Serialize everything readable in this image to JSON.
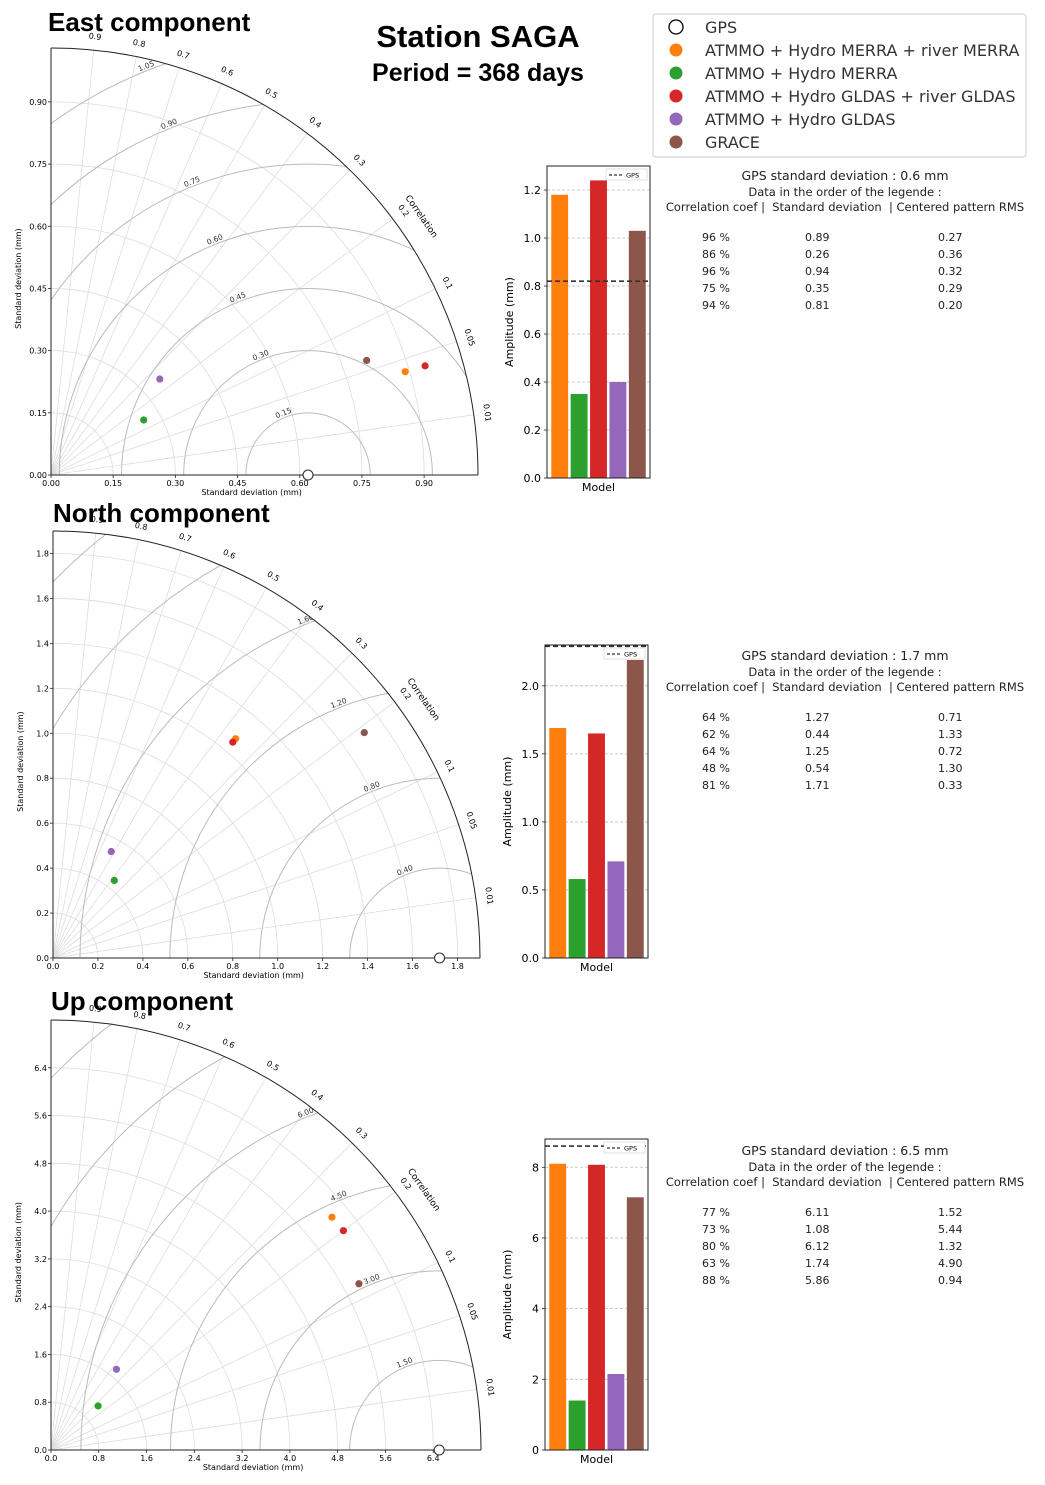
{
  "header": {
    "station": "Station SAGA",
    "period": "Period = 368 days"
  },
  "legend": [
    {
      "label": "GPS",
      "color": "#000000",
      "marker": "circle-open"
    },
    {
      "label": "ATMMO + Hydro MERRA + river MERRA",
      "color": "#ff7f0e"
    },
    {
      "label": "ATMMO + Hydro MERRA",
      "color": "#2ca02c"
    },
    {
      "label": "ATMMO + Hydro GLDAS + river GLDAS",
      "color": "#d62728"
    },
    {
      "label": "ATMMO + Hydro GLDAS",
      "color": "#9467bd"
    },
    {
      "label": "GRACE",
      "color": "#8c564b"
    }
  ],
  "stats_header": {
    "order_text": "Data in the order of the legende :",
    "columns": "Correlation coef |  Standard deviation  | Centered pattern RMS"
  },
  "chart_data": [
    {
      "type": "taylor",
      "title": "East component",
      "xlabel": "Standard deviation (mm)",
      "ylabel": "Standard deviation (mm)",
      "corr_label": "Correlation",
      "max_std": 1.03,
      "std_ticks": [
        "0.00",
        "0.15",
        "0.30",
        "0.45",
        "0.60",
        "0.75",
        "0.90"
      ],
      "corr_ticks": [
        "0.01",
        "0.05",
        "0.1",
        "0.2",
        "0.3",
        "0.4",
        "0.5",
        "0.6",
        "0.7",
        "0.8",
        "0.9"
      ],
      "rms_values": [
        0.15,
        0.3,
        0.45,
        0.6,
        0.75,
        0.9,
        1.05
      ],
      "rms_labels": [
        "0.15",
        "0.30",
        "0.45",
        "0.60",
        "0.75",
        "0.90",
        "1.05"
      ],
      "gps_std": 0.62,
      "points": [
        {
          "corr": 0.96,
          "std": 0.89
        },
        {
          "corr": 0.86,
          "std": 0.26
        },
        {
          "corr": 0.96,
          "std": 0.94
        },
        {
          "corr": 0.75,
          "std": 0.35
        },
        {
          "corr": 0.94,
          "std": 0.81
        }
      ],
      "bar": {
        "type": "bar",
        "xlabel": "Model",
        "ylabel": "Amplitude (mm)",
        "ylim": [
          0,
          1.3
        ],
        "yticks": [
          "0.0",
          "0.2",
          "0.4",
          "0.6",
          "0.8",
          "1.0",
          "1.2"
        ],
        "values": [
          1.18,
          0.35,
          1.24,
          0.4,
          1.03
        ],
        "gps_line": 0.82,
        "gps_label": "GPS"
      },
      "stats": {
        "gps_text": "GPS standard deviation : 0.6 mm",
        "rows": [
          [
            "96 %",
            "0.89",
            "0.27"
          ],
          [
            "86 %",
            "0.26",
            "0.36"
          ],
          [
            "96 %",
            "0.94",
            "0.32"
          ],
          [
            "75 %",
            "0.35",
            "0.29"
          ],
          [
            "94 %",
            "0.81",
            "0.20"
          ]
        ]
      }
    },
    {
      "type": "taylor",
      "title": "North component",
      "xlabel": "Standard deviation (mm)",
      "ylabel": "Standard deviation (mm)",
      "corr_label": "Correlation",
      "max_std": 1.9,
      "std_ticks": [
        "0.0",
        "0.2",
        "0.4",
        "0.6",
        "0.8",
        "1.0",
        "1.2",
        "1.4",
        "1.6",
        "1.8"
      ],
      "corr_ticks": [
        "0.01",
        "0.05",
        "0.1",
        "0.2",
        "0.3",
        "0.4",
        "0.5",
        "0.6",
        "0.7",
        "0.8",
        "0.9"
      ],
      "rms_values": [
        0.4,
        0.8,
        1.2,
        1.6,
        2.0,
        2.4
      ],
      "rms_labels": [
        "0.40",
        "0.80",
        "1.20",
        "1.60",
        "2.00",
        "2.40"
      ],
      "gps_std": 1.72,
      "points": [
        {
          "corr": 0.64,
          "std": 1.27
        },
        {
          "corr": 0.62,
          "std": 0.44
        },
        {
          "corr": 0.64,
          "std": 1.25
        },
        {
          "corr": 0.48,
          "std": 0.54
        },
        {
          "corr": 0.81,
          "std": 1.71
        }
      ],
      "bar": {
        "type": "bar",
        "xlabel": "Model",
        "ylabel": "Amplitude (mm)",
        "ylim": [
          0,
          2.3
        ],
        "yticks": [
          "0.0",
          "0.5",
          "1.0",
          "1.5",
          "2.0"
        ],
        "values": [
          1.69,
          0.58,
          1.65,
          0.71,
          2.19
        ],
        "gps_line": 2.29,
        "gps_label": "GPS"
      },
      "stats": {
        "gps_text": "GPS standard deviation : 1.7 mm",
        "rows": [
          [
            "64 %",
            "1.27",
            "0.71"
          ],
          [
            "62 %",
            "0.44",
            "1.33"
          ],
          [
            "64 %",
            "1.25",
            "0.72"
          ],
          [
            "48 %",
            "0.54",
            "1.30"
          ],
          [
            "81 %",
            "1.71",
            "0.33"
          ]
        ]
      }
    },
    {
      "type": "taylor",
      "title": "Up component",
      "xlabel": "Standard deviation (mm)",
      "ylabel": "Standard deviation (mm)",
      "corr_label": "Correlation",
      "max_std": 7.2,
      "std_ticks": [
        "0.0",
        "0.8",
        "1.6",
        "2.4",
        "3.2",
        "4.0",
        "4.8",
        "5.6",
        "6.4"
      ],
      "corr_ticks": [
        "0.01",
        "0.05",
        "0.1",
        "0.2",
        "0.3",
        "0.4",
        "0.5",
        "0.6",
        "0.7",
        "0.8",
        "0.9"
      ],
      "rms_values": [
        1.5,
        3.0,
        4.5,
        6.0,
        7.5,
        9.0
      ],
      "rms_labels": [
        "1.50",
        "3.00",
        "4.50",
        "6.00",
        "7.50",
        "9.00"
      ],
      "gps_std": 6.5,
      "points": [
        {
          "corr": 0.77,
          "std": 6.11
        },
        {
          "corr": 0.73,
          "std": 1.08
        },
        {
          "corr": 0.8,
          "std": 6.12
        },
        {
          "corr": 0.63,
          "std": 1.74
        },
        {
          "corr": 0.88,
          "std": 5.86
        }
      ],
      "bar": {
        "type": "bar",
        "xlabel": "Model",
        "ylabel": "Amplitude (mm)",
        "ylim": [
          0,
          8.8
        ],
        "yticks": [
          "0",
          "2",
          "4",
          "6",
          "8"
        ],
        "values": [
          8.1,
          1.4,
          8.07,
          2.15,
          7.15
        ],
        "gps_line": 8.6,
        "gps_label": "GPS"
      },
      "stats": {
        "gps_text": "GPS standard deviation : 6.5 mm",
        "rows": [
          [
            "77 %",
            "6.11",
            "1.52"
          ],
          [
            "73 %",
            "1.08",
            "5.44"
          ],
          [
            "80 %",
            "6.12",
            "1.32"
          ],
          [
            "63 %",
            "1.74",
            "4.90"
          ],
          [
            "88 %",
            "5.86",
            "0.94"
          ]
        ]
      }
    }
  ]
}
